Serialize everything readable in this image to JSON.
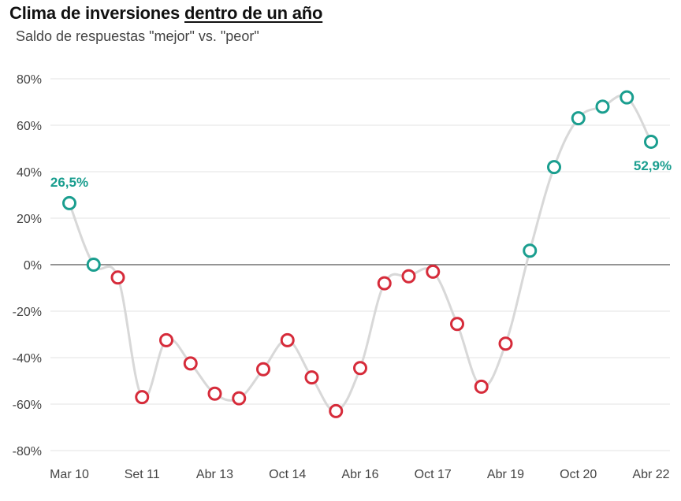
{
  "title_part1": "Clima de inversiones ",
  "title_part2": "dentro de un año",
  "subtitle": "Saldo de respuestas \"mejor\" vs. \"peor\"",
  "colors": {
    "positive": "#1a9e8f",
    "negative": "#d62b3a",
    "line": "#d8d8d8",
    "grid": "#e3e3e3",
    "zero": "#555555"
  },
  "chart_data": {
    "type": "line",
    "title": "Clima de inversiones dentro de un año",
    "subtitle": "Saldo de respuestas \"mejor\" vs. \"peor\"",
    "xlabel": "",
    "ylabel": "",
    "ylim": [
      -80,
      80
    ],
    "yticks": [
      "80%",
      "60%",
      "40%",
      "20%",
      "0%",
      "-20%",
      "-40%",
      "-60%",
      "-80%"
    ],
    "xtick_labels": [
      "Mar 10",
      "Set 11",
      "Abr 13",
      "Oct 14",
      "Abr 16",
      "Oct 17",
      "Abr 19",
      "Oct 20",
      "Abr 22"
    ],
    "grid": true,
    "values": [
      26.5,
      0,
      -5.5,
      -57,
      -32.5,
      -42.5,
      -55.5,
      -57.5,
      -45,
      -32.5,
      -48.5,
      -63,
      -44.5,
      -8,
      -5,
      -3,
      -25.5,
      -52.5,
      -34,
      6,
      42,
      63,
      68,
      72,
      52.9
    ],
    "data_labels": {
      "first": "26,5%",
      "last": "52,9%"
    }
  }
}
